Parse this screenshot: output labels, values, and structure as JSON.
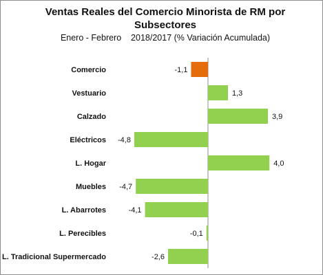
{
  "chart_data": {
    "type": "bar",
    "orientation": "horizontal",
    "title": "Ventas Reales del Comercio Minorista de RM por Subsectores",
    "subtitle": "Enero - Febrero    2018/2017 (% Variación Acumulada)",
    "categories": [
      "Comercio",
      "Vestuario",
      "Calzado",
      "Eléctricos",
      "L. Hogar",
      "Muebles",
      "L. Abarrotes",
      "L. Perecibles",
      "L. Tradicional Supermercado"
    ],
    "values": [
      -1.1,
      1.3,
      3.9,
      -4.8,
      4.0,
      -4.7,
      -4.1,
      -0.1,
      -2.6
    ],
    "value_labels": [
      "-1,1",
      "1,3",
      "3,9",
      "-4,8",
      "4,0",
      "-4,7",
      "-4,1",
      "-0,1",
      "-2,6"
    ],
    "colors": [
      "#e46c0a",
      "#92d050",
      "#92d050",
      "#92d050",
      "#92d050",
      "#92d050",
      "#92d050",
      "#92d050",
      "#92d050"
    ],
    "xlim": [
      -5,
      5
    ],
    "grid": false,
    "legend": "none"
  }
}
